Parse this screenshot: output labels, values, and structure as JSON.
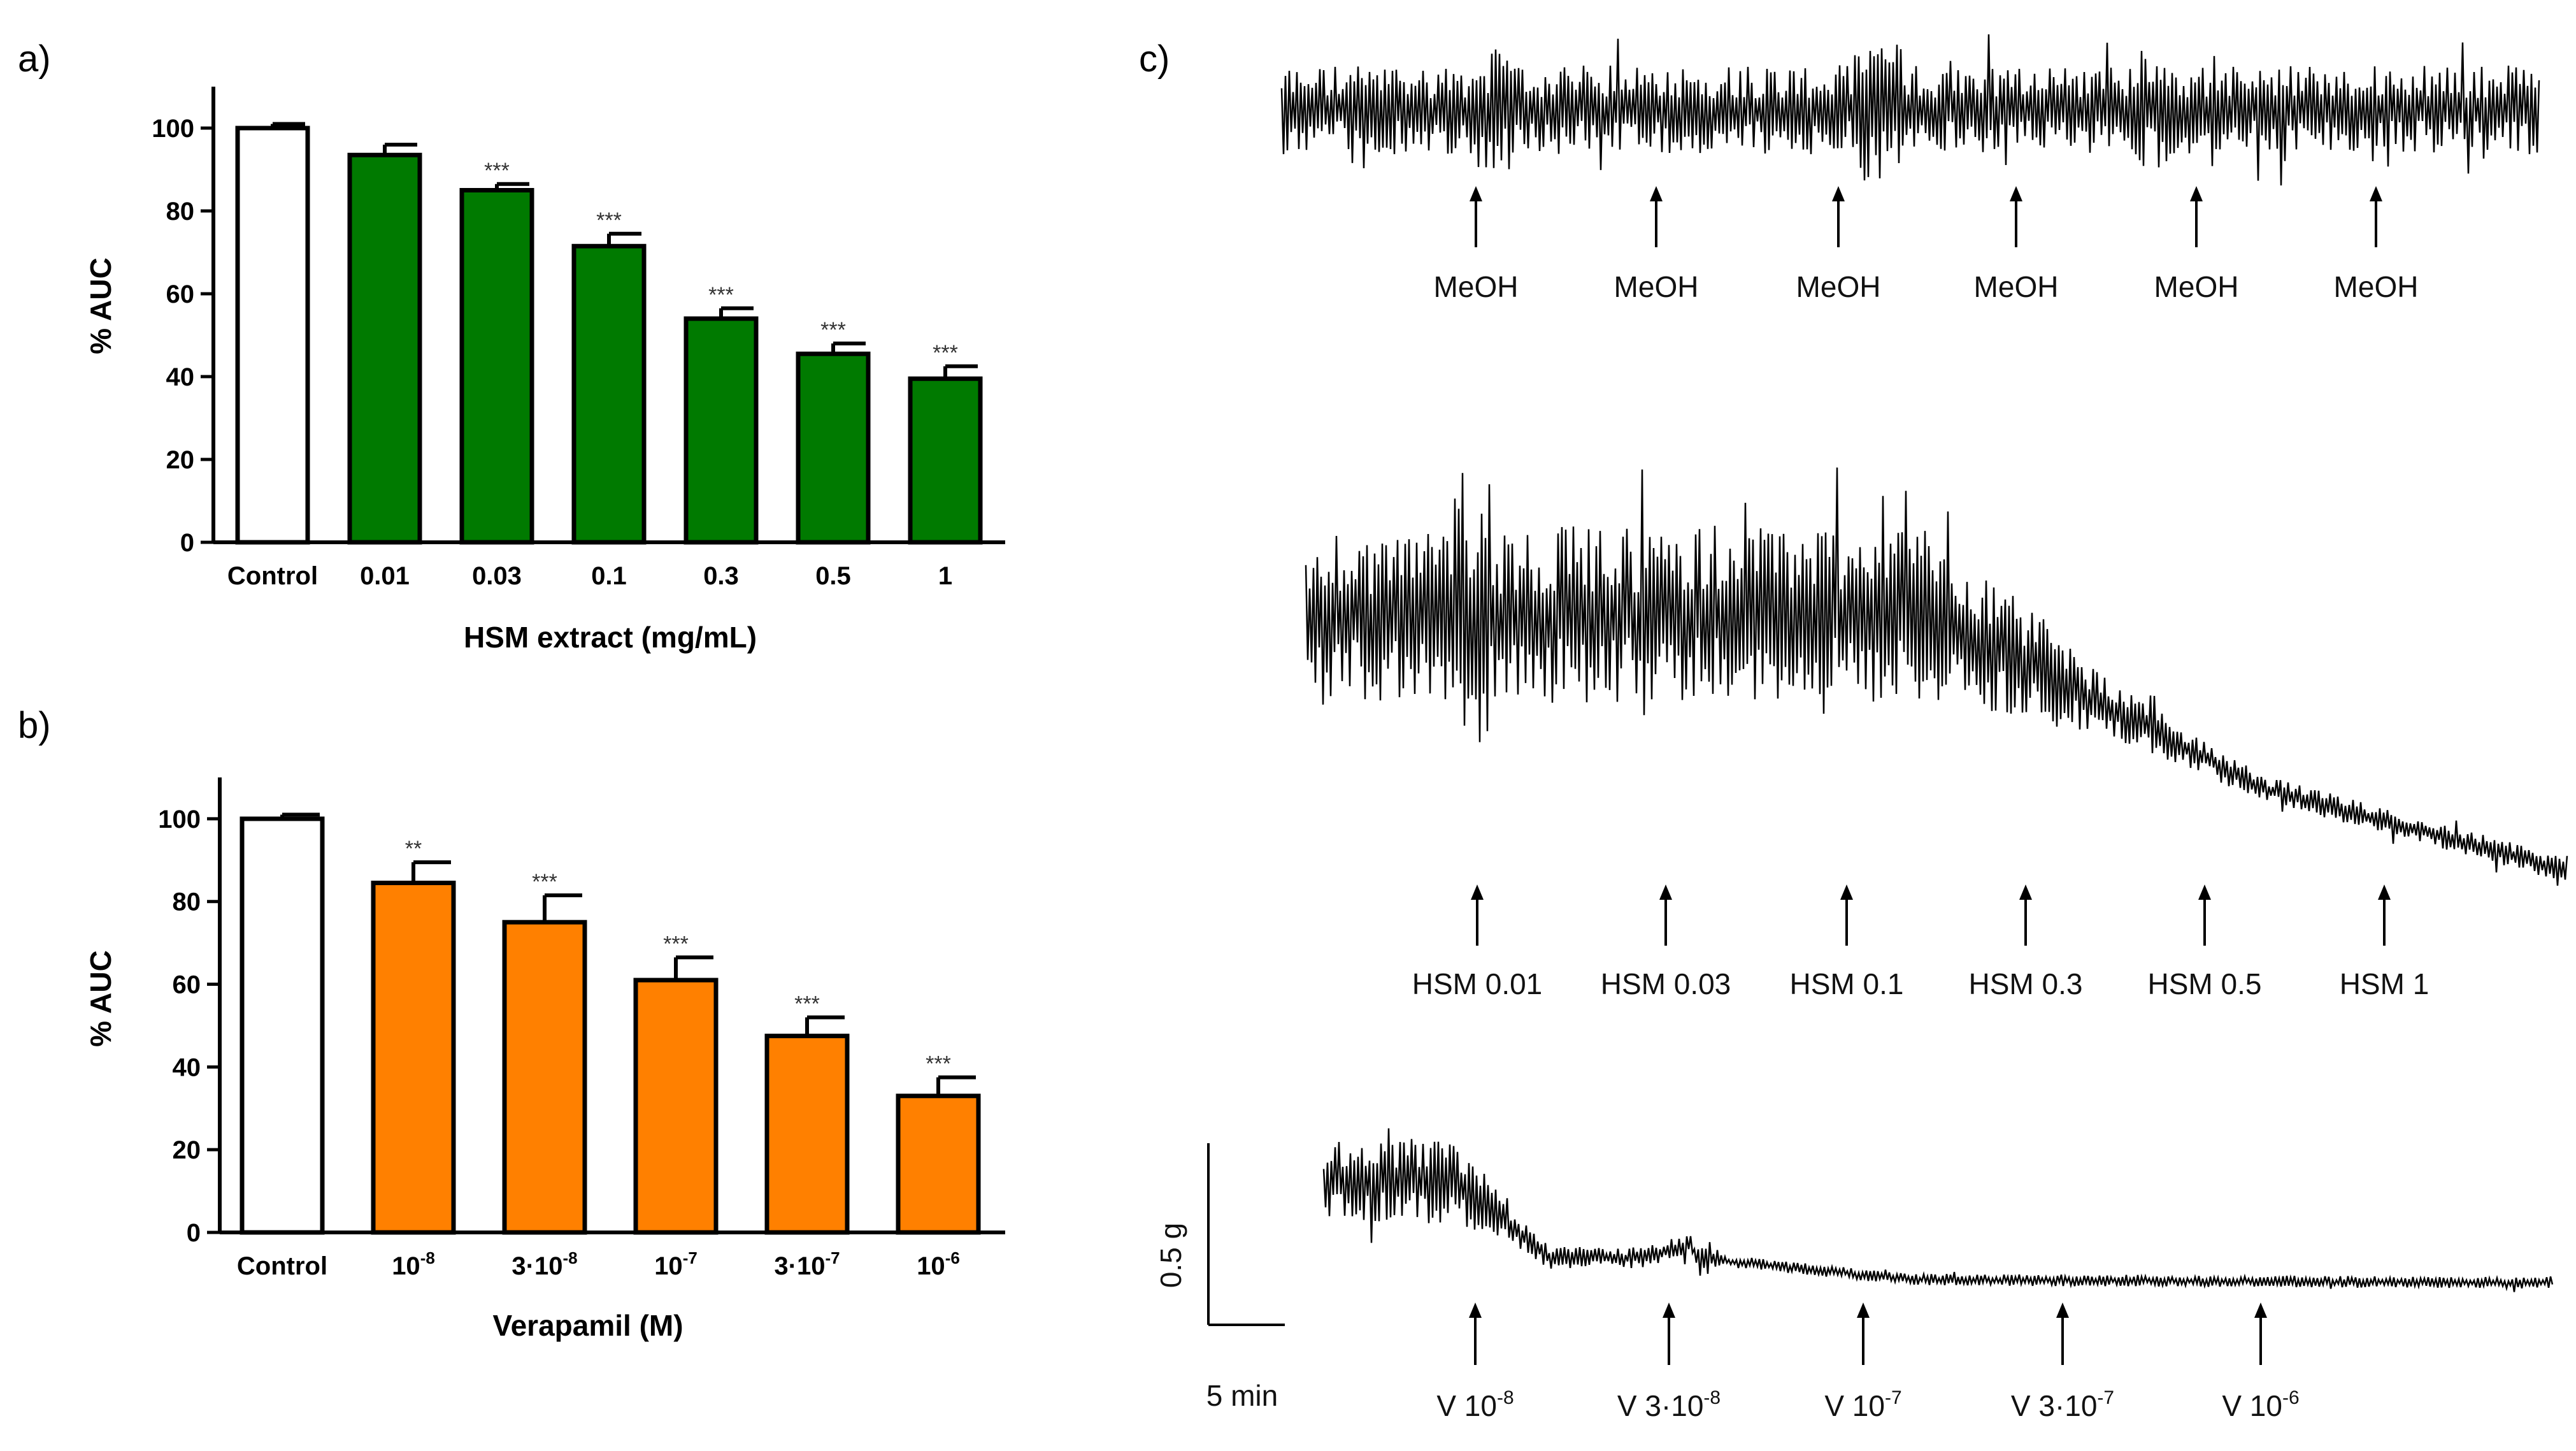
{
  "chart_data": [
    {
      "panel": "a)",
      "type": "bar",
      "categories": [
        "Control",
        "0.01",
        "0.03",
        "0.1",
        "0.3",
        "0.5",
        "1"
      ],
      "values": [
        100,
        93.5,
        85,
        71.5,
        54,
        45.5,
        39.5
      ],
      "errors": [
        1,
        2.5,
        1.5,
        3,
        2.5,
        2.5,
        3
      ],
      "significance": [
        "",
        "",
        "***",
        "***",
        "***",
        "***",
        "***"
      ],
      "bar_colors": [
        "#ffffff",
        "#007a00",
        "#007a00",
        "#007a00",
        "#007a00",
        "#007a00",
        "#007a00"
      ],
      "ylabel": "% AUC",
      "xlabel": "HSM extract (mg/mL)",
      "ylim": [
        0,
        110
      ],
      "yticks": [
        0,
        20,
        40,
        60,
        80,
        100
      ]
    },
    {
      "panel": "b)",
      "type": "bar",
      "categories": [
        {
          "base": "Control",
          "exp": ""
        },
        {
          "base": "10",
          "exp": "-8"
        },
        {
          "base": "3·10",
          "exp": "-8"
        },
        {
          "base": "10",
          "exp": "-7"
        },
        {
          "base": "3·10",
          "exp": "-7"
        },
        {
          "base": "10",
          "exp": "-6"
        }
      ],
      "values": [
        100,
        84.5,
        75,
        61,
        47.5,
        33
      ],
      "errors": [
        1,
        5,
        6.5,
        5.5,
        4.5,
        4.5
      ],
      "significance": [
        "",
        "**",
        "***",
        "***",
        "***",
        "***"
      ],
      "bar_colors": [
        "#ffffff",
        "#ff8000",
        "#ff8000",
        "#ff8000",
        "#ff8000",
        "#ff8000"
      ],
      "ylabel": "% AUC",
      "xlabel": "Verapamil (M)",
      "ylim": [
        0,
        110
      ],
      "yticks": [
        0,
        20,
        40,
        60,
        80,
        100
      ]
    }
  ],
  "panel_c": {
    "letter": "c)",
    "traces": [
      {
        "name": "meoh",
        "markers": [
          {
            "base": "MeOH",
            "exp": ""
          },
          {
            "base": "MeOH",
            "exp": ""
          },
          {
            "base": "MeOH",
            "exp": ""
          },
          {
            "base": "MeOH",
            "exp": ""
          },
          {
            "base": "MeOH",
            "exp": ""
          },
          {
            "base": "MeOH",
            "exp": ""
          }
        ]
      },
      {
        "name": "hsm",
        "markers": [
          {
            "base": "HSM 0.01",
            "exp": ""
          },
          {
            "base": "HSM 0.03",
            "exp": ""
          },
          {
            "base": "HSM 0.1",
            "exp": ""
          },
          {
            "base": "HSM 0.3",
            "exp": ""
          },
          {
            "base": "HSM 0.5",
            "exp": ""
          },
          {
            "base": "HSM 1",
            "exp": ""
          }
        ]
      },
      {
        "name": "verapamil",
        "markers": [
          {
            "base": "V 10",
            "exp": "-8"
          },
          {
            "base": "V 3·10",
            "exp": "-8"
          },
          {
            "base": "V 10",
            "exp": "-7"
          },
          {
            "base": "V 3·10",
            "exp": "-7"
          },
          {
            "base": "V 10",
            "exp": "-6"
          }
        ]
      }
    ],
    "scale_bar": {
      "vertical_label": "0.5 g",
      "horizontal_label": "5 min"
    }
  }
}
